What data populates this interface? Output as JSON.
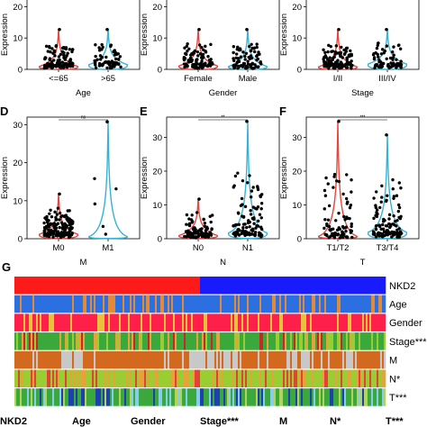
{
  "colors": {
    "red": "#e8453c",
    "blue": "#36b3d4",
    "dot": "#000000",
    "nkd2_high": "#ff1a1a",
    "nkd2_low": "#1a1aff"
  },
  "chart_data": [
    {
      "type": "violin",
      "panel": "",
      "xlabel": "Age",
      "ylabel": "Expression",
      "categories": [
        "<=65",
        ">65"
      ],
      "ylim": [
        0,
        25
      ],
      "yticks": [
        0,
        10,
        20
      ],
      "sig": "",
      "series": [
        {
          "category": "<=65",
          "color": "#e8453c",
          "max": 13,
          "median": 1.2,
          "n": 110
        },
        {
          "category": ">65",
          "color": "#36b3d4",
          "max": 13,
          "median": 1.8,
          "n": 60
        }
      ]
    },
    {
      "type": "violin",
      "panel": "",
      "xlabel": "Gender",
      "ylabel": "Expression",
      "categories": [
        "Female",
        "Male"
      ],
      "ylim": [
        0,
        25
      ],
      "yticks": [
        0,
        10,
        20
      ],
      "sig": "",
      "series": [
        {
          "category": "Female",
          "color": "#e8453c",
          "max": 13,
          "median": 1.4,
          "n": 95
        },
        {
          "category": "Male",
          "color": "#36b3d4",
          "max": 13,
          "median": 1.2,
          "n": 80
        }
      ]
    },
    {
      "type": "violin",
      "panel": "",
      "xlabel": "Stage",
      "ylabel": "Expression",
      "categories": [
        "I/II",
        "III/IV"
      ],
      "ylim": [
        0,
        25
      ],
      "yticks": [
        0,
        10,
        20
      ],
      "sig": "",
      "series": [
        {
          "category": "I/II",
          "color": "#e8453c",
          "max": 13,
          "median": 1.1,
          "n": 110
        },
        {
          "category": "III/IV",
          "color": "#36b3d4",
          "max": 13,
          "median": 2.0,
          "n": 70
        }
      ]
    },
    {
      "type": "violin",
      "panel": "D",
      "xlabel": "M",
      "ylabel": "Expression",
      "categories": [
        "M0",
        "M1"
      ],
      "ylim": [
        0,
        32
      ],
      "yticks": [
        0,
        10,
        20,
        30
      ],
      "sig": "ns",
      "series": [
        {
          "category": "M0",
          "color": "#e8453c",
          "max": 12,
          "median": 1.4,
          "n": 150
        },
        {
          "category": "M1",
          "color": "#36b3d4",
          "max": 31,
          "median": 0.8,
          "n": 5
        }
      ]
    },
    {
      "type": "violin",
      "panel": "E",
      "xlabel": "N",
      "ylabel": "Expression",
      "categories": [
        "N0",
        "N1"
      ],
      "ylim": [
        0,
        36
      ],
      "yticks": [
        0,
        10,
        20,
        30
      ],
      "sig": "**",
      "series": [
        {
          "category": "N0",
          "color": "#e8453c",
          "max": 12,
          "median": 1.2,
          "n": 90
        },
        {
          "category": "N1",
          "color": "#36b3d4",
          "max": 35,
          "median": 2.0,
          "n": 110
        }
      ]
    },
    {
      "type": "violin",
      "panel": "F",
      "xlabel": "T",
      "ylabel": "Expression",
      "categories": [
        "T1/T2",
        "T3/T4"
      ],
      "ylim": [
        0,
        36
      ],
      "yticks": [
        0,
        10,
        20,
        30
      ],
      "sig": "***",
      "series": [
        {
          "category": "T1/T2",
          "color": "#e8453c",
          "max": 35,
          "median": 1.0,
          "n": 80
        },
        {
          "category": "T3/T4",
          "color": "#36b3d4",
          "max": 31,
          "median": 2.2,
          "n": 110
        }
      ]
    },
    {
      "type": "heatmap",
      "panel": "G",
      "rows": [
        {
          "name": "NKD2",
          "palette": [
            "#ff1a1a",
            "#1a1aff"
          ],
          "pattern": "split"
        },
        {
          "name": "Age",
          "palette": [
            "#2b6fe0",
            "#e08a3a"
          ],
          "pattern": "mostly-first"
        },
        {
          "name": "Gender",
          "palette": [
            "#ff1f4b",
            "#e8c23a"
          ],
          "pattern": "mostly-first"
        },
        {
          "name": "Stage***",
          "palette": [
            "#3aa83a",
            "#9acd32",
            "#e8a23a",
            "#c62828"
          ],
          "pattern": "mixed"
        },
        {
          "name": "M",
          "palette": [
            "#d2691e",
            "#c8c8c8"
          ],
          "pattern": "blocks"
        },
        {
          "name": "N*",
          "palette": [
            "#9acd32",
            "#e8a23a",
            "#e34234"
          ],
          "pattern": "mixed"
        },
        {
          "name": "T***",
          "palette": [
            "#3aa83a",
            "#87ceeb",
            "#1e40af",
            "#b5d35a"
          ],
          "pattern": "mixed"
        }
      ],
      "legend_labels": [
        "NKD2",
        "Age",
        "Gender",
        "Stage***",
        "M",
        "N*",
        "T***"
      ]
    }
  ],
  "panel_label_G": "G"
}
